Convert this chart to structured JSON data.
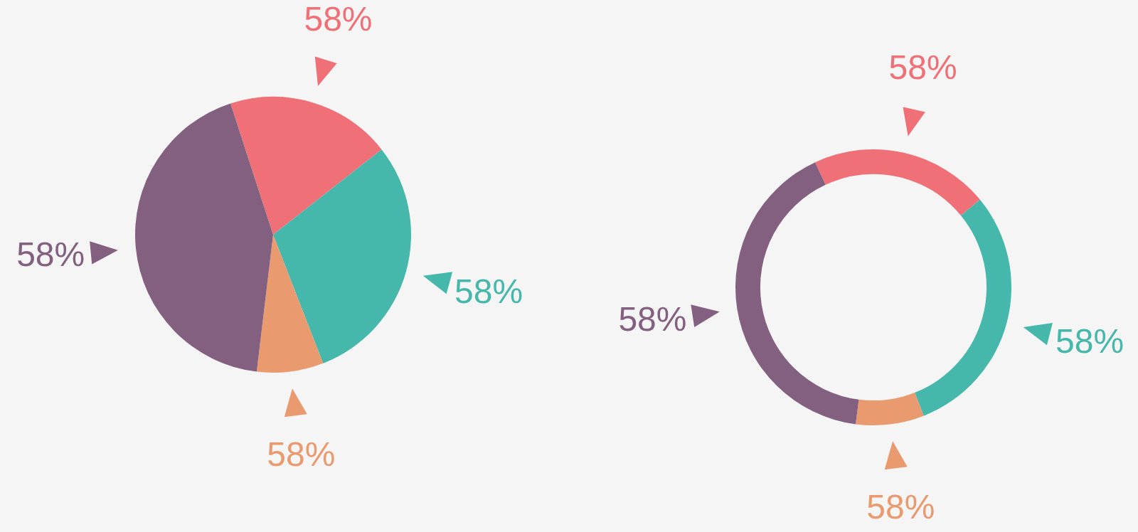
{
  "chart_data": [
    {
      "type": "pie",
      "categories": [
        null,
        null,
        null,
        null
      ],
      "values": [
        19.4,
        29.7,
        7.8,
        43.1
      ],
      "colors": [
        "#ef7077",
        "#46b7ab",
        "#e99a6e",
        "#83607f"
      ],
      "annotations": [
        "58%",
        "58%",
        "58%",
        "58%"
      ],
      "legend": false
    },
    {
      "type": "donut",
      "categories": [
        null,
        null,
        null,
        null
      ],
      "values": [
        21,
        30,
        8,
        41
      ],
      "colors": [
        "#ef7077",
        "#46b7ab",
        "#e99a6e",
        "#83607f"
      ],
      "annotations": [
        "58%",
        "58%",
        "58%",
        "58%"
      ],
      "legend": false
    }
  ]
}
